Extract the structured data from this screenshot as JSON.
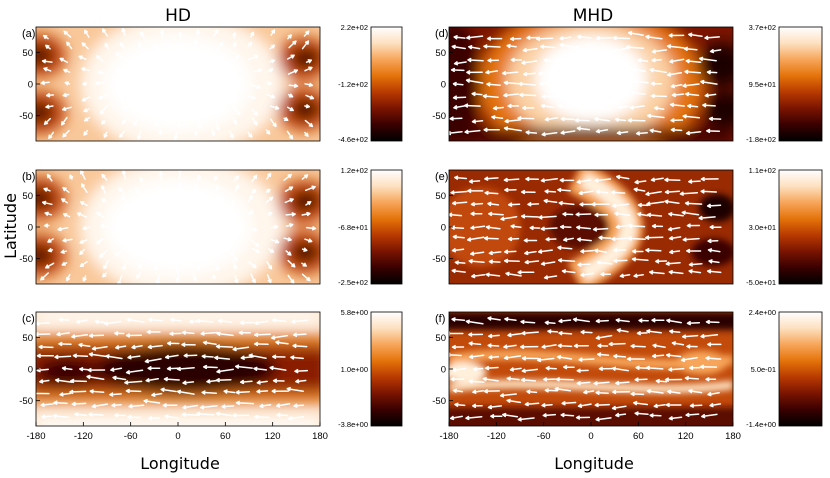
{
  "figure": {
    "column_titles": [
      "HD",
      "MHD"
    ],
    "xlabel": "Longitude",
    "ylabel": "Latitude"
  },
  "colors": {
    "colormap": [
      "#000000",
      "#3a0000",
      "#7a1400",
      "#b83a00",
      "#e4730a",
      "#f7a55a",
      "#fde0c0",
      "#ffffff"
    ],
    "arrow": "#ffffff",
    "axis": "#000000"
  },
  "chart_data": [
    {
      "type": "heatmap",
      "label": "(a)",
      "column": "HD",
      "xlim": [
        -180,
        180
      ],
      "ylim": [
        -90,
        90
      ],
      "xticks": [],
      "yticks": [
        50,
        0,
        -50
      ],
      "colorbar": {
        "ticks": [
          "2.2e+02",
          "-1.2e+02",
          "-4.6e+02"
        ],
        "max": 220,
        "mid": -120,
        "min": -460
      },
      "pattern": "bright-center"
    },
    {
      "type": "heatmap",
      "label": "(b)",
      "column": "HD",
      "xlim": [
        -180,
        180
      ],
      "ylim": [
        -90,
        90
      ],
      "xticks": [],
      "yticks": [
        50,
        0,
        -50
      ],
      "colorbar": {
        "ticks": [
          "1.2e+02",
          "-6.8e+01",
          "-2.5e+02"
        ],
        "max": 120,
        "mid": -68,
        "min": -250
      },
      "pattern": "bright-center"
    },
    {
      "type": "heatmap",
      "label": "(c)",
      "column": "HD",
      "xlim": [
        -180,
        180
      ],
      "ylim": [
        -90,
        90
      ],
      "xticks": [
        "-180",
        "-120",
        "-60",
        "0",
        "60",
        "120",
        "180"
      ],
      "yticks": [
        50,
        0,
        -50
      ],
      "colorbar": {
        "ticks": [
          "5.8e+00",
          "1.0e+00",
          "-3.8e+00"
        ],
        "max": 5.8,
        "mid": 1.0,
        "min": -3.8
      },
      "pattern": "dark-equator"
    },
    {
      "type": "heatmap",
      "label": "(d)",
      "column": "MHD",
      "xlim": [
        -180,
        180
      ],
      "ylim": [
        -90,
        90
      ],
      "xticks": [],
      "yticks": [
        50,
        0,
        -50
      ],
      "colorbar": {
        "ticks": [
          "3.7e+02",
          "9.5e+01",
          "-1.8e+02"
        ],
        "max": 370,
        "mid": 95,
        "min": -180
      },
      "pattern": "bright-center-dark-edges"
    },
    {
      "type": "heatmap",
      "label": "(e)",
      "column": "MHD",
      "xlim": [
        -180,
        180
      ],
      "ylim": [
        -90,
        90
      ],
      "xticks": [],
      "yticks": [
        50,
        0,
        -50
      ],
      "colorbar": {
        "ticks": [
          "1.1e+02",
          "3.0e+01",
          "-5.0e+01"
        ],
        "max": 110,
        "mid": 30,
        "min": -50
      },
      "pattern": "crescent"
    },
    {
      "type": "heatmap",
      "label": "(f)",
      "column": "MHD",
      "xlim": [
        -180,
        180
      ],
      "ylim": [
        -90,
        90
      ],
      "xticks": [
        "-180",
        "-120",
        "-60",
        "0",
        "60",
        "120",
        "180"
      ],
      "yticks": [
        50,
        0,
        -50
      ],
      "colorbar": {
        "ticks": [
          "2.4e+00",
          "5.0e-01",
          "-1.4e+00"
        ],
        "max": 2.4,
        "mid": 0.5,
        "min": -1.4
      },
      "pattern": "bands"
    }
  ]
}
